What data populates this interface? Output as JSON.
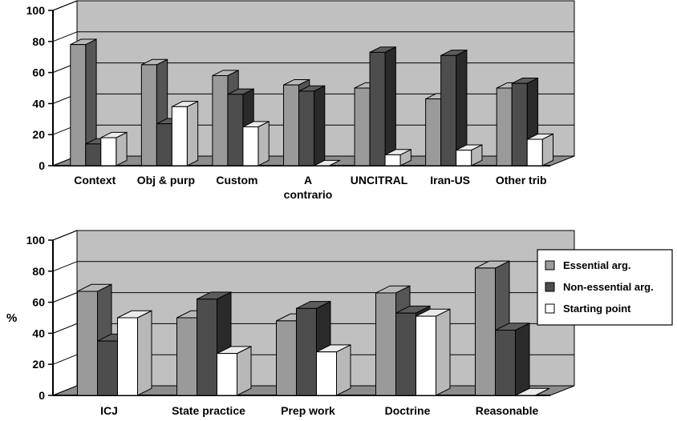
{
  "colors": {
    "essential": "#9a9a9a",
    "non_essential": "#4d4d4d",
    "starting": "#ffffff",
    "wall": "#c0c0c0",
    "floor": "#8c8c8c"
  },
  "legend": {
    "items": [
      {
        "key": "essential",
        "label": "Essential arg."
      },
      {
        "key": "non_essential",
        "label": "Non-essential arg."
      },
      {
        "key": "starting",
        "label": "Starting point"
      }
    ]
  },
  "chart_data": [
    {
      "type": "bar",
      "title": "",
      "xlabel": "",
      "ylabel": "",
      "ylim": [
        0,
        100
      ],
      "yticks": [
        0,
        20,
        40,
        60,
        80,
        100
      ],
      "grid": true,
      "categories": [
        "Context",
        "Obj & purp",
        "Custom",
        "A\ncontrario",
        "UNCITRAL",
        "Iran-US",
        "Other trib"
      ],
      "series": [
        {
          "name": "Essential arg.",
          "key": "essential",
          "values": [
            78,
            65,
            58,
            52,
            50,
            43,
            50
          ]
        },
        {
          "name": "Non-essential arg.",
          "key": "non_essential",
          "values": [
            14,
            27,
            46,
            48,
            73,
            71,
            53
          ]
        },
        {
          "name": "Starting point",
          "key": "starting",
          "values": [
            18,
            38,
            25,
            0,
            7,
            10,
            17
          ]
        }
      ]
    },
    {
      "type": "bar",
      "title": "",
      "xlabel": "",
      "ylabel": "%",
      "ylim": [
        0,
        100
      ],
      "yticks": [
        0,
        20,
        40,
        60,
        80,
        100
      ],
      "grid": true,
      "legend": "right",
      "categories": [
        "ICJ",
        "State practice",
        "Prep work",
        "Doctrine",
        "Reasonable"
      ],
      "series": [
        {
          "name": "Essential arg.",
          "key": "essential",
          "values": [
            67,
            50,
            48,
            66,
            82
          ]
        },
        {
          "name": "Non-essential arg.",
          "key": "non_essential",
          "values": [
            35,
            62,
            56,
            53,
            42
          ]
        },
        {
          "name": "Starting point",
          "key": "starting",
          "values": [
            50,
            27,
            28,
            51,
            0
          ]
        }
      ]
    }
  ]
}
